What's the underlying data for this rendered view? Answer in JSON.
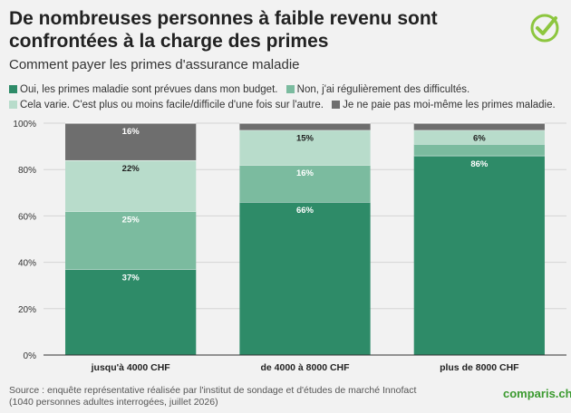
{
  "header": {
    "title": "De nombreuses personnes à faible revenu sont confrontées à la charge des primes",
    "subtitle": "Comment payer les primes d'assurance maladie"
  },
  "logo": {
    "icon": "check-circle-icon",
    "color": "#8dc63f"
  },
  "footer": {
    "source": "Source : enquête représentative réalisée par l'institut de sondage et d'études de marché Innofact (1040 personnes adultes interrogées, juillet 2026)",
    "brand": "comparis.ch"
  },
  "chart_data": {
    "type": "bar",
    "stacked": true,
    "categories": [
      "jusqu'à 4000 CHF",
      "de 4000 à 8000 CHF",
      "plus de 8000 CHF"
    ],
    "series": [
      {
        "name": "Oui, les primes maladie sont prévues dans mon budget.",
        "color": "#2e8b68",
        "values": [
          37,
          66,
          86
        ],
        "labels": [
          "37%",
          "66%",
          "86%"
        ]
      },
      {
        "name": "Non, j'ai régulièrement des difficultés.",
        "color": "#7bbb9f",
        "values": [
          25,
          16,
          5
        ],
        "labels": [
          "25%",
          "16%",
          ""
        ]
      },
      {
        "name": "Cela varie. C'est plus ou moins facile/difficile d'une fois sur l'autre.",
        "color": "#b8dccb",
        "values": [
          22,
          15,
          6
        ],
        "labels": [
          "22%",
          "15%",
          "6%"
        ]
      },
      {
        "name": "Je ne paie pas moi-même les primes maladie.",
        "color": "#6e6e6e",
        "values": [
          16,
          3,
          3
        ],
        "labels": [
          "16%",
          "",
          ""
        ]
      }
    ],
    "ylim": [
      0,
      100
    ],
    "yticks": [
      0,
      20,
      40,
      60,
      80,
      100
    ],
    "ytick_labels": [
      "0%",
      "20%",
      "40%",
      "60%",
      "80%",
      "100%"
    ],
    "grid": true,
    "legend": "top"
  }
}
